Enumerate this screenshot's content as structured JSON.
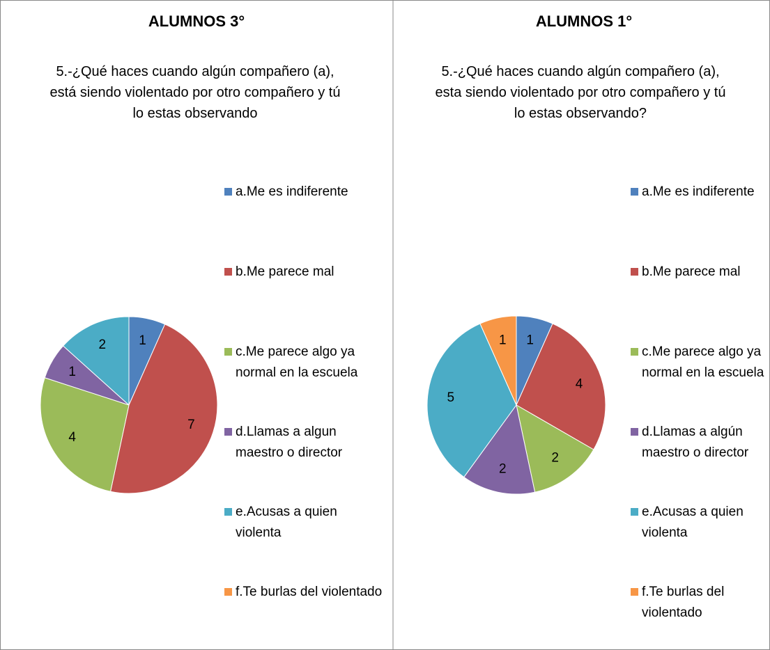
{
  "chart_data": [
    {
      "type": "pie",
      "title": "ALUMNOS 3°",
      "subtitle": "5.-¿Qué haces cuando algún compañero (a), está siendo violentado por otro compañero y tú lo estas observando",
      "categories": [
        "a.Me es indiferente",
        "b.Me parece mal",
        "c.Me parece algo ya normal en la escuela",
        "d.Llamas a algun maestro o director",
        "e.Acusas a quien violenta",
        "f.Te burlas del violentado"
      ],
      "values": [
        1,
        7,
        4,
        1,
        2,
        0
      ],
      "colors": [
        "#4f81bd",
        "#c0504d",
        "#9bbb59",
        "#8064a2",
        "#4bacc6",
        "#f79646"
      ]
    },
    {
      "type": "pie",
      "title": "ALUMNOS 1°",
      "subtitle": "5.-¿Qué haces cuando algún compañero (a), esta siendo violentado por otro compañero y tú lo estas observando?",
      "categories": [
        "a.Me es indiferente",
        "b.Me parece mal",
        "c.Me parece algo ya normal en la escuela",
        "d.Llamas a algún maestro o director",
        "e.Acusas a quien violenta",
        "f.Te burlas del violentado"
      ],
      "values": [
        1,
        4,
        2,
        2,
        5,
        1
      ],
      "colors": [
        "#4f81bd",
        "#c0504d",
        "#9bbb59",
        "#8064a2",
        "#4bacc6",
        "#f79646"
      ]
    }
  ]
}
